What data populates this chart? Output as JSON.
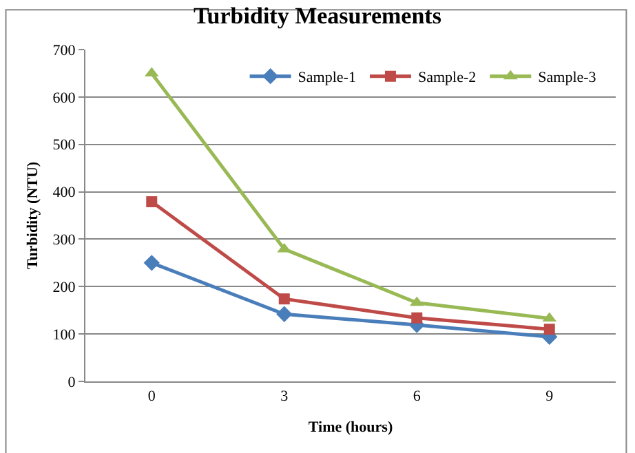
{
  "chart_data": {
    "type": "line",
    "title": "Turbidity Measurements",
    "xlabel": "Time (hours)",
    "ylabel": "Turbidity (NTU)",
    "categories": [
      "0",
      "3",
      "6",
      "9"
    ],
    "series": [
      {
        "name": "Sample-1",
        "color": "#4a7ebb",
        "marker": "diamond",
        "values": [
          250,
          142,
          119,
          94
        ]
      },
      {
        "name": "Sample-2",
        "color": "#be4b48",
        "marker": "square",
        "values": [
          379,
          174,
          134,
          110
        ]
      },
      {
        "name": "Sample-3",
        "color": "#98b954",
        "marker": "triangle",
        "values": [
          650,
          279,
          166,
          133
        ]
      }
    ],
    "ylim": [
      0,
      700
    ],
    "yticks": [
      0,
      100,
      200,
      300,
      400,
      500,
      600,
      700
    ],
    "grid": "y",
    "legend": "top right",
    "line_style": "solid"
  }
}
